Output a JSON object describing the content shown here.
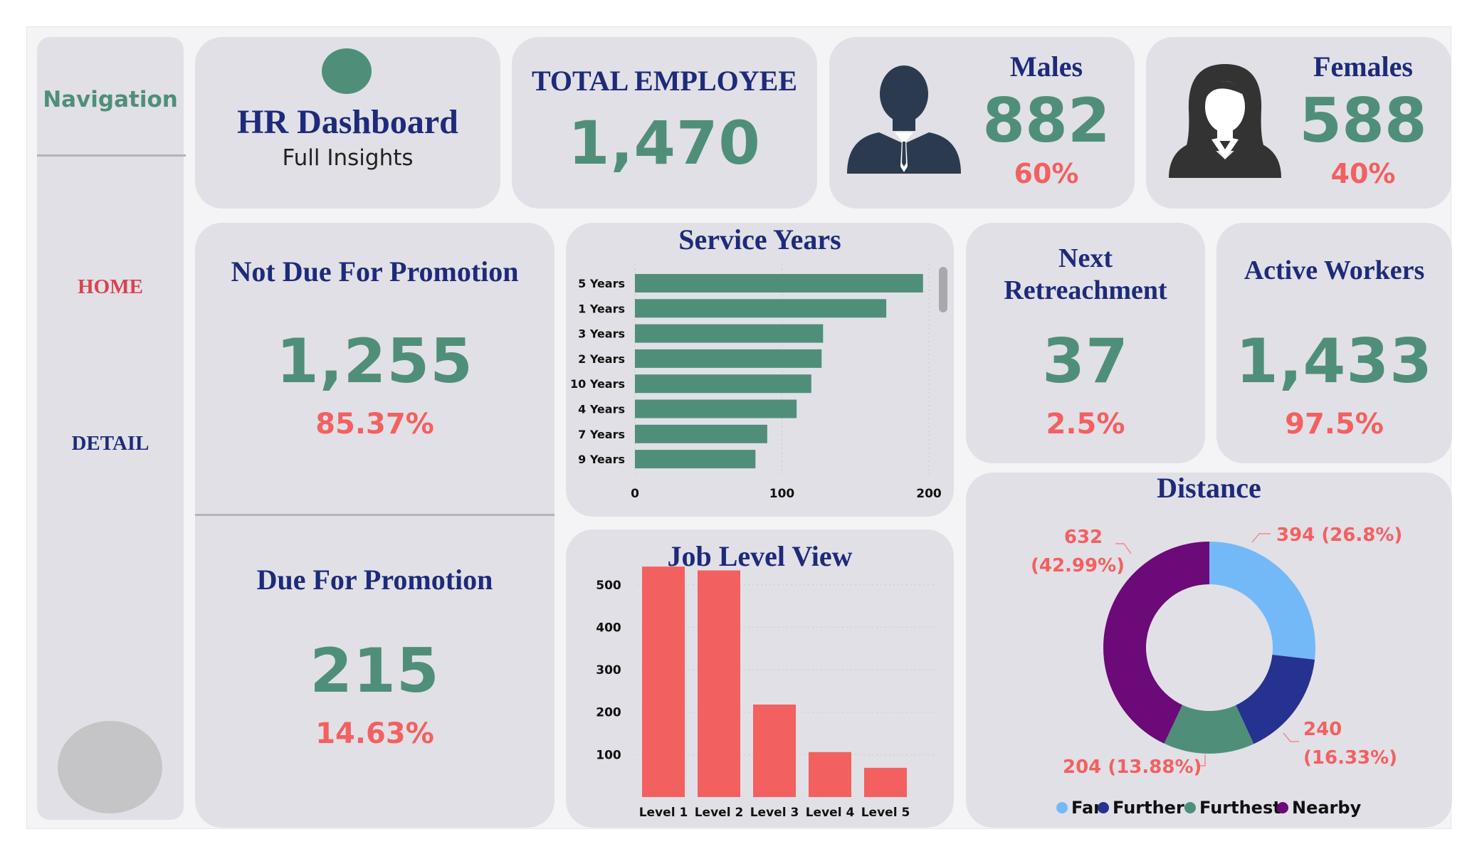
{
  "nav": {
    "title": "Navigation",
    "items": [
      {
        "label": "HOME",
        "color": "#d9434f"
      },
      {
        "label": "DETAIL",
        "color": "#1e2a7a"
      }
    ]
  },
  "header": {
    "title": "HR Dashboard",
    "subtitle": "Full Insights"
  },
  "kpis": {
    "total_employee": {
      "label": "TOTAL EMPLOYEE",
      "value": "1,470"
    },
    "males": {
      "label": "Males",
      "value": "882",
      "pct": "60%"
    },
    "females": {
      "label": "Females",
      "value": "588",
      "pct": "40%"
    },
    "not_due": {
      "label": "Not Due For Promotion",
      "value": "1,255",
      "pct": "85.37%"
    },
    "due": {
      "label": "Due For Promotion",
      "value": "215",
      "pct": "14.63%"
    },
    "next_retrenchment": {
      "label_line1": "Next",
      "label_line2": "Retreachment",
      "value": "37",
      "pct": "2.5%"
    },
    "active_workers": {
      "label": "Active Workers",
      "value": "1,433",
      "pct": "97.5%"
    }
  },
  "colors": {
    "accent_green": "#4f8f79",
    "accent_red": "#f36060",
    "title_navy": "#1e2a7a",
    "panel_bg": "#e1e0e6"
  },
  "chart_data": [
    {
      "type": "bar",
      "orientation": "horizontal",
      "title": "Service Years",
      "categories": [
        "5 Years",
        "1 Years",
        "3 Years",
        "2 Years",
        "10 Years",
        "4 Years",
        "7 Years",
        "9 Years"
      ],
      "values": [
        196,
        171,
        128,
        127,
        120,
        110,
        90,
        82
      ],
      "xlim": [
        0,
        200
      ],
      "xticks": [
        "0",
        "100",
        "200"
      ],
      "grid": true,
      "color": "#4f8f79"
    },
    {
      "type": "bar",
      "title": "Job Level View",
      "categories": [
        "Level 1",
        "Level 2",
        "Level 3",
        "Level 4",
        "Level 5"
      ],
      "values": [
        543,
        534,
        218,
        106,
        69
      ],
      "ylim": [
        0,
        560
      ],
      "yticks": [
        "100",
        "200",
        "300",
        "400",
        "500"
      ],
      "grid": true,
      "color": "#f36060"
    },
    {
      "type": "pie",
      "style": "donut",
      "title": "Distance",
      "slices": [
        {
          "name": "Far",
          "value": 394,
          "label": "394 (26.8%)",
          "color": "#74b9f7"
        },
        {
          "name": "Further",
          "value": 240,
          "label_line1": "240",
          "label_line2": "(16.33%)",
          "color": "#26328f"
        },
        {
          "name": "Furthest",
          "value": 204,
          "label": "204 (13.88%)",
          "color": "#4f8f79"
        },
        {
          "name": "Nearby",
          "value": 632,
          "label_line1": "632",
          "label_line2": "(42.99%)",
          "color": "#6b0a78"
        }
      ],
      "legend": "bottom"
    }
  ]
}
